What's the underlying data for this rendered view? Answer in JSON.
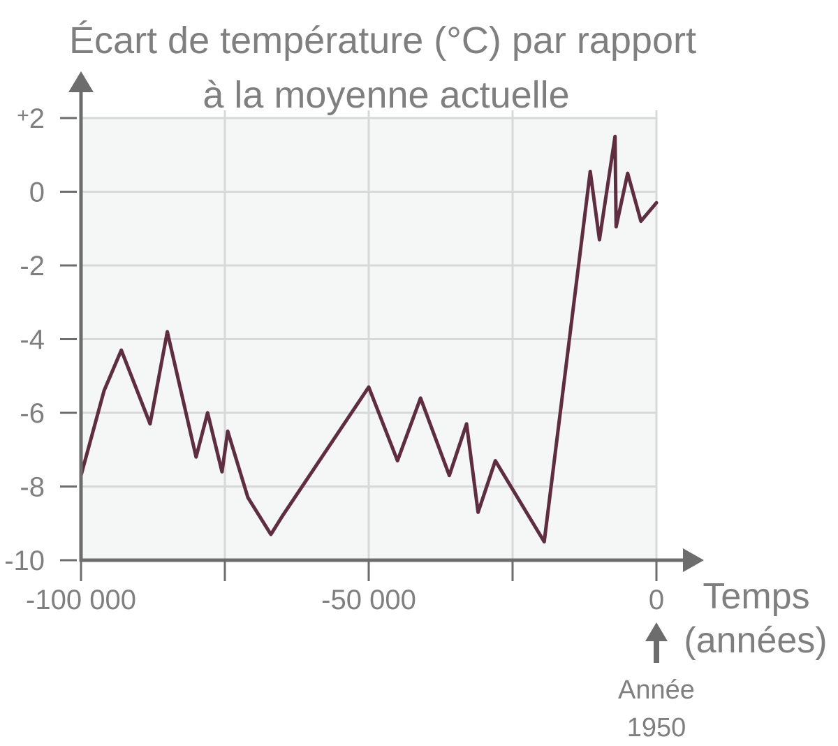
{
  "chart_data": {
    "type": "line",
    "title_line1": "Écart de température (°C) par rapport",
    "title_line2": "à la moyenne actuelle",
    "xlabel_line1": "Temps",
    "xlabel_line2": "(années)",
    "xlim": [
      -100000,
      0
    ],
    "ylim": [
      -10,
      2
    ],
    "x_ticks": [
      {
        "value": -100000,
        "label": "-100 000"
      },
      {
        "value": -50000,
        "label": "-50 000"
      },
      {
        "value": 0,
        "label": "0"
      }
    ],
    "x_minor_ticks": [
      -75000,
      -25000
    ],
    "y_ticks": [
      {
        "value": 2,
        "label": "2",
        "prefix": "+"
      },
      {
        "value": 0,
        "label": "0"
      },
      {
        "value": -2,
        "label": "-2"
      },
      {
        "value": -4,
        "label": "-4"
      },
      {
        "value": -6,
        "label": "-6"
      },
      {
        "value": -8,
        "label": "-8"
      },
      {
        "value": -10,
        "label": "-10"
      }
    ],
    "grid": true,
    "annotation": {
      "x": 0,
      "line1": "Année",
      "line2": "1950"
    },
    "colors": {
      "line": "#5e2d40",
      "grid": "#d8d8d8",
      "plot_bg": "#f5f7f6",
      "axis": "#6d6d6d",
      "text": "#7f7f7f"
    },
    "series": [
      {
        "x": [
          -100000,
          -96000,
          -93000,
          -88000,
          -85000,
          -80000,
          -78000,
          -75500,
          -74500,
          -71000,
          -67000,
          -65000,
          -50000,
          -45000,
          -41000,
          -36000,
          -33000,
          -31000,
          -28000,
          -19500,
          -11500,
          -9900,
          -7200,
          -7000,
          -5000,
          -2700,
          0
        ],
        "y": [
          -7.7,
          -5.4,
          -4.3,
          -6.3,
          -3.8,
          -7.2,
          -6.0,
          -7.6,
          -6.5,
          -8.3,
          -9.3,
          -8.8,
          -5.3,
          -7.3,
          -5.6,
          -7.7,
          -6.3,
          -8.7,
          -7.3,
          -9.5,
          0.55,
          -1.3,
          1.5,
          -0.95,
          0.5,
          -0.8,
          -0.3
        ]
      }
    ]
  }
}
